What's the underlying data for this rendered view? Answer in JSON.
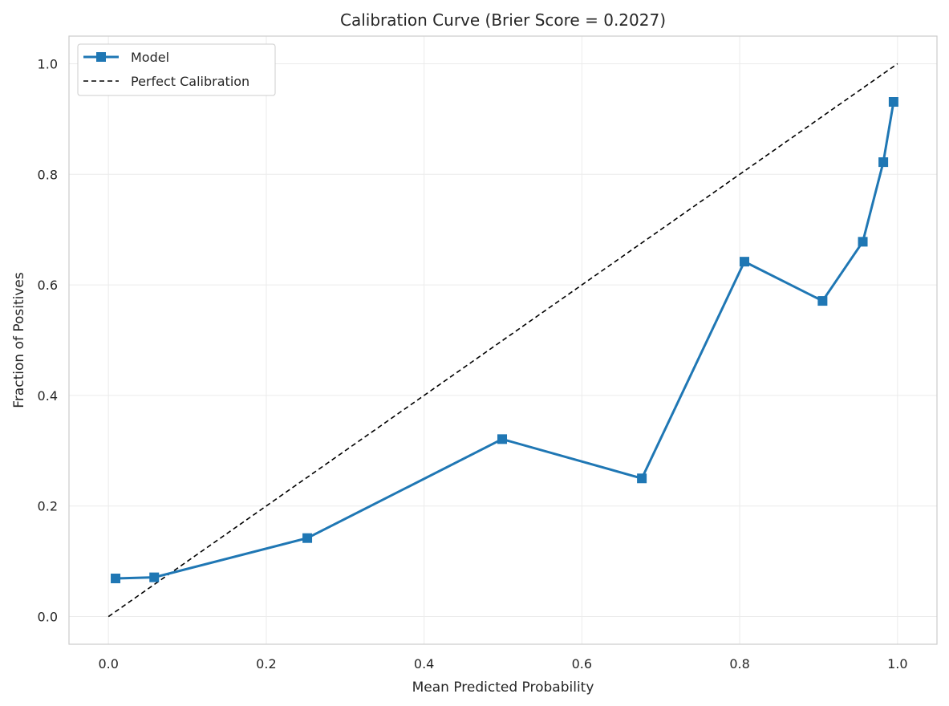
{
  "chart_data": {
    "type": "line",
    "title": "Calibration Curve (Brier Score = 0.2027)",
    "xlabel": "Mean Predicted Probability",
    "ylabel": "Fraction of Positives",
    "xlim": [
      -0.05,
      1.05
    ],
    "ylim": [
      -0.05,
      1.05
    ],
    "xticks": [
      0.0,
      0.2,
      0.4,
      0.6,
      0.8,
      1.0
    ],
    "yticks": [
      0.0,
      0.2,
      0.4,
      0.6,
      0.8,
      1.0
    ],
    "xtick_labels": [
      "0.0",
      "0.2",
      "0.4",
      "0.6",
      "0.8",
      "1.0"
    ],
    "ytick_labels": [
      "0.0",
      "0.2",
      "0.4",
      "0.6",
      "0.8",
      "1.0"
    ],
    "grid": true,
    "legend_position": "top-left",
    "series": [
      {
        "name": "Model",
        "style": "solid",
        "marker": "square",
        "color": "#1f77b4",
        "x": [
          0.009,
          0.058,
          0.252,
          0.499,
          0.676,
          0.806,
          0.905,
          0.956,
          0.982,
          0.995
        ],
        "y": [
          0.069,
          0.071,
          0.142,
          0.321,
          0.25,
          0.642,
          0.571,
          0.678,
          0.822,
          0.931
        ]
      },
      {
        "name": "Perfect Calibration",
        "style": "dashed",
        "marker": "none",
        "color": "#000000",
        "x": [
          0.0,
          1.0
        ],
        "y": [
          0.0,
          1.0
        ]
      }
    ]
  }
}
